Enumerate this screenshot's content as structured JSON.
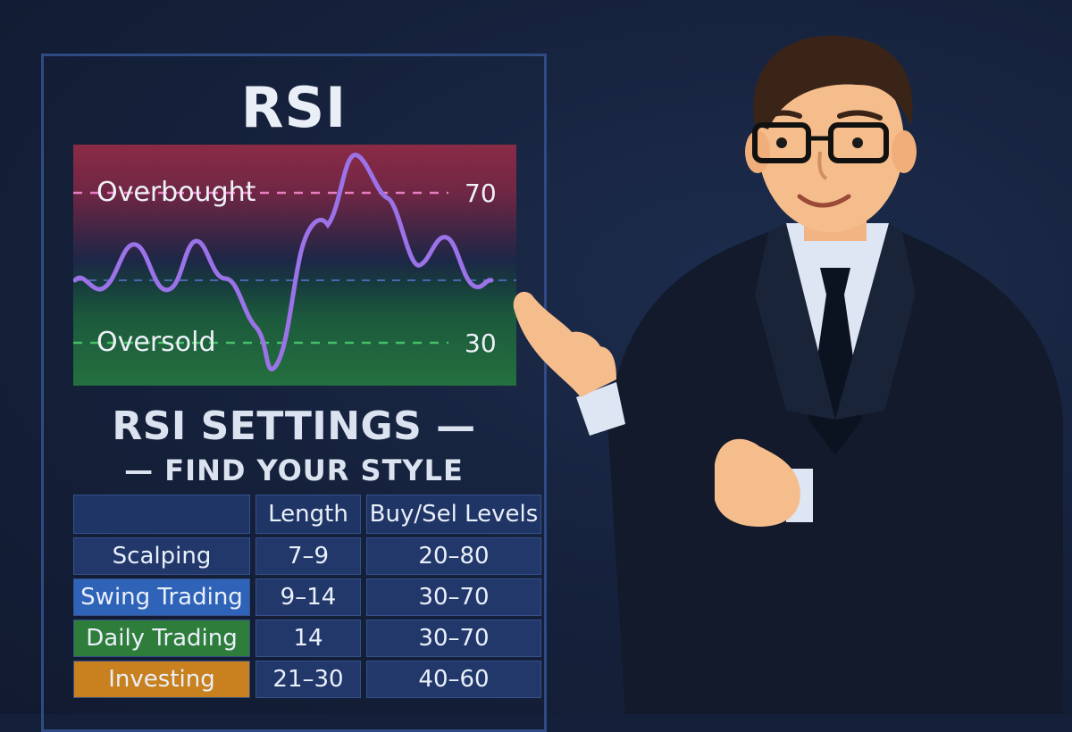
{
  "title": "RSI",
  "chart": {
    "overbought_label": "Overbought",
    "oversold_label": "Oversold",
    "overbought_level": "70",
    "oversold_level": "30",
    "colors": {
      "line": "#9b72e8",
      "overbought_dash": "#e67fc0",
      "oversold_dash": "#45c06a",
      "mid_dash": "#4a66b0"
    }
  },
  "settings": {
    "title": "RSI SETTINGS —",
    "subtitle": "— FIND YOUR STYLE",
    "headers": [
      "",
      "Length",
      "Buy/Sel Levels"
    ],
    "rows": [
      {
        "style": "Scalping",
        "length": "7–9",
        "levels": "20–80",
        "color": "#22386b"
      },
      {
        "style": "Swing Trading",
        "length": "9–14",
        "levels": "30–70",
        "color": "#2f63b8"
      },
      {
        "style": "Daily Trading",
        "length": "14",
        "levels": "30–70",
        "color": "#2f7d3b"
      },
      {
        "style": "Investing",
        "length": "21–30",
        "levels": "40–60",
        "color": "#c9801f"
      }
    ]
  },
  "presenter": {
    "icon": "businessman-pointing-icon"
  }
}
